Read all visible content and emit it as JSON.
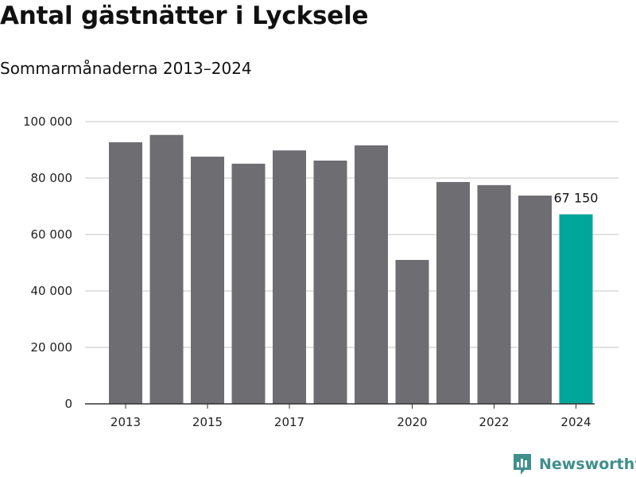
{
  "title": "Antal gästnätter i Lycksele",
  "subtitle": "Sommarmånaderna 2013–2024",
  "brand": {
    "name": "Newsworthy",
    "color": "#3f8f8c"
  },
  "colors": {
    "bar": "#6e6d72",
    "highlight": "#00a69a",
    "grid": "#d9d9d9",
    "axis": "#333333"
  },
  "chart_data": {
    "type": "bar",
    "title": "Antal gästnätter i Lycksele",
    "subtitle": "Sommarmånaderna 2013–2024",
    "categories": [
      "2013",
      "2014",
      "2015",
      "2016",
      "2017",
      "2018",
      "2019",
      "2020",
      "2021",
      "2022",
      "2023",
      "2024"
    ],
    "values": [
      92700,
      95300,
      87600,
      85100,
      89800,
      86200,
      91600,
      51000,
      78600,
      77500,
      73800,
      67150
    ],
    "x_tick_labels": [
      "2013",
      "",
      "2015",
      "",
      "2017",
      "",
      "",
      "2020",
      "",
      "2022",
      "",
      "2024"
    ],
    "highlight_index": 11,
    "data_labels": [
      {
        "index": 11,
        "text": "67 150"
      }
    ],
    "y_ticks": [
      0,
      20000,
      40000,
      60000,
      80000,
      100000
    ],
    "y_tick_labels": [
      "0",
      "20 000",
      "40 000",
      "60 000",
      "80 000",
      "100 000"
    ],
    "ylim": [
      0,
      100000
    ],
    "xlabel": "",
    "ylabel": "",
    "grid": true
  }
}
